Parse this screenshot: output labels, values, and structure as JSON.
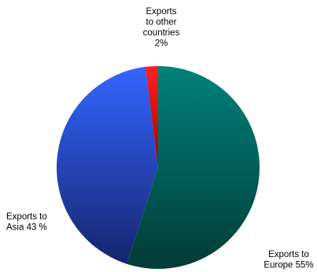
{
  "chart_data": {
    "type": "pie",
    "slices": [
      {
        "label_lines": [
          "Exports to",
          "Europe 55%"
        ],
        "value": 55,
        "color": "#00827a",
        "color_dark": "#033b36"
      },
      {
        "label_lines": [
          "Exports to",
          "Asia 43 %"
        ],
        "value": 43,
        "color": "#3366ff",
        "color_dark": "#16246f"
      },
      {
        "label_lines": [
          "Exports",
          "to other",
          "countries",
          "2%"
        ],
        "value": 2,
        "color": "#ff2020",
        "color_dark": "#a30000"
      }
    ],
    "start_angle_deg": 0,
    "direction": "clockwise",
    "title": "",
    "legend": "none"
  }
}
